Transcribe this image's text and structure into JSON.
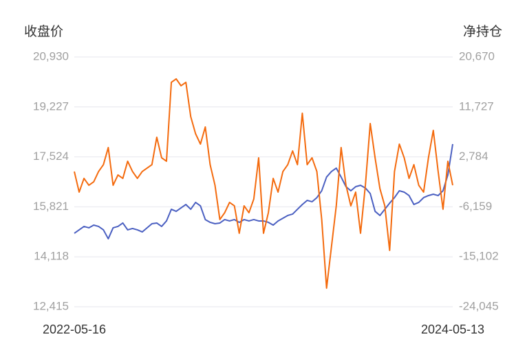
{
  "chart_data": {
    "type": "line",
    "y_label": "收盘价",
    "y2_label": "净持仓",
    "categories": [
      "2022-05-16",
      null,
      null,
      null,
      null,
      null,
      null,
      null,
      null,
      null,
      null,
      null,
      null,
      null,
      null,
      null,
      null,
      null,
      null,
      null,
      null,
      null,
      null,
      null,
      null,
      null,
      null,
      null,
      null,
      null,
      null,
      null,
      null,
      null,
      null,
      null,
      null,
      null,
      null,
      null,
      null,
      null,
      null,
      null,
      null,
      null,
      null,
      null,
      null,
      null,
      null,
      null,
      null,
      null,
      null,
      null,
      null,
      null,
      null,
      null,
      null,
      null,
      null,
      null,
      null,
      null,
      null,
      null,
      null,
      null,
      null,
      null,
      null,
      null,
      null,
      null,
      null,
      null,
      "2024-05-13"
    ],
    "series": [
      {
        "color": "#4a5fc1",
        "values": [
          14919,
          15036,
          15153,
          15106,
          15199,
          15153,
          15036,
          14732,
          15106,
          15153,
          15270,
          15036,
          15083,
          15036,
          14966,
          15106,
          15246,
          15270,
          15153,
          15340,
          15738,
          15668,
          15784,
          15901,
          15738,
          15972,
          15854,
          15387,
          15293,
          15246,
          15270,
          15387,
          15340,
          15387,
          15293,
          15387,
          15340,
          15387,
          15340,
          15340,
          15293,
          15199,
          15340,
          15433,
          15527,
          15574,
          15738,
          15901,
          16042,
          15995,
          16135,
          16369,
          16837,
          17024,
          17141,
          16837,
          16509,
          16369,
          16509,
          16556,
          16463,
          16275,
          15668,
          15527,
          15738,
          15948,
          16135,
          16369,
          16322,
          16205,
          15901,
          15972,
          16135,
          16205,
          16252,
          16205,
          16369,
          16907,
          17960
        ]
      },
      {
        "color": "#f46a0d",
        "axis": "y2",
        "values": [
          162,
          -3522,
          -1066,
          -2294,
          -1680,
          162,
          1390,
          4460,
          -2294,
          -452,
          -1066,
          2004,
          162,
          -1066,
          162,
          776,
          1390,
          6302,
          2618,
          2004,
          16126,
          16740,
          15512,
          16126,
          9986,
          6916,
          5074,
          8144,
          1390,
          -2294,
          -8434,
          -7206,
          -5364,
          -5978,
          -10890,
          -5978,
          -7206,
          -4750,
          2618,
          -10890,
          -7206,
          -1066,
          -3522,
          162,
          1390,
          3846,
          1390,
          10600,
          1390,
          2618,
          162,
          -8434,
          -20714,
          -13346,
          -5978,
          4460,
          -2294,
          -5978,
          -3522,
          -10890,
          -2294,
          8758,
          2618,
          -2908,
          -5978,
          -13960,
          162,
          5074,
          2618,
          -1066,
          1390,
          -2294,
          -3522,
          2618,
          7530,
          162,
          -6592,
          2004,
          -2294
        ]
      }
    ],
    "ylim": [
      12415,
      20930
    ],
    "yticks": [
      {
        "value": 12415,
        "label": "12,415"
      },
      {
        "value": 14118,
        "label": "14,118"
      },
      {
        "value": 15821,
        "label": "15,821"
      },
      {
        "value": 17524,
        "label": "17,524"
      },
      {
        "value": 19227,
        "label": "19,227"
      },
      {
        "value": 20930,
        "label": "20,930"
      }
    ],
    "y2lim": [
      -24045,
      20670
    ],
    "y2ticks": [
      {
        "value": -24045,
        "label": "-24,045"
      },
      {
        "value": -15102,
        "label": "-15,102"
      },
      {
        "value": -6159,
        "label": "-6,159"
      },
      {
        "value": 2784,
        "label": "2,784"
      },
      {
        "value": 11727,
        "label": "11,727"
      },
      {
        "value": 20670,
        "label": "20,670"
      }
    ],
    "grid": true
  }
}
